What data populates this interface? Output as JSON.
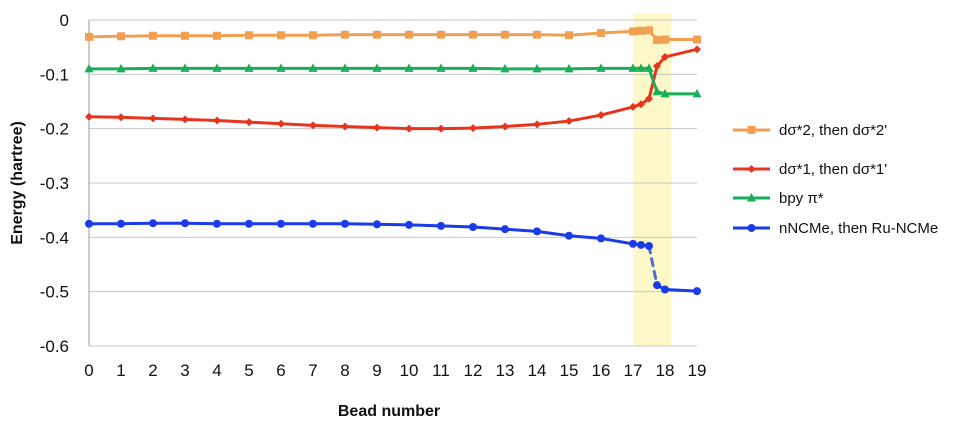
{
  "chart_data": {
    "type": "line",
    "title": "",
    "xlabel": "Bead number",
    "ylabel": "Energy (hartree)",
    "xlim": [
      0,
      19
    ],
    "ylim": [
      -0.6,
      0
    ],
    "x_ticks": [
      0,
      1,
      2,
      3,
      4,
      5,
      6,
      7,
      8,
      9,
      10,
      11,
      12,
      13,
      14,
      15,
      16,
      17,
      18,
      19
    ],
    "y_ticks": [
      0,
      -0.1,
      -0.2,
      -0.3,
      -0.4,
      -0.5,
      -0.6
    ],
    "y_tick_labels": [
      "0",
      "-0.1",
      "-0.2",
      "-0.3",
      "-0.4",
      "-0.5",
      "-0.6"
    ],
    "grid": "horizontal",
    "legend_position": "right",
    "highlight_region": {
      "x_from": 17.0,
      "x_to": 18.2,
      "color": "#fdf8c7"
    },
    "series": [
      {
        "name": "dσ*2, then dσ*2'",
        "color": "#f0a050",
        "marker": "square",
        "points": [
          [
            0,
            -0.031
          ],
          [
            1,
            -0.03
          ],
          [
            2,
            -0.029
          ],
          [
            3,
            -0.029
          ],
          [
            4,
            -0.029
          ],
          [
            5,
            -0.028
          ],
          [
            6,
            -0.028
          ],
          [
            7,
            -0.028
          ],
          [
            8,
            -0.027
          ],
          [
            9,
            -0.027
          ],
          [
            10,
            -0.027
          ],
          [
            11,
            -0.027
          ],
          [
            12,
            -0.027
          ],
          [
            13,
            -0.027
          ],
          [
            14,
            -0.027
          ],
          [
            15,
            -0.028
          ],
          [
            16,
            -0.024
          ],
          [
            17,
            -0.021
          ],
          [
            17.25,
            -0.02
          ],
          [
            17.5,
            -0.019
          ],
          [
            17.75,
            -0.037
          ],
          [
            18,
            -0.036
          ],
          [
            19,
            -0.036
          ]
        ]
      },
      {
        "name": "dσ*1, then dσ*1'",
        "color": "#e8341c",
        "marker": "diamond",
        "points": [
          [
            0,
            -0.178
          ],
          [
            1,
            -0.179
          ],
          [
            2,
            -0.181
          ],
          [
            3,
            -0.183
          ],
          [
            4,
            -0.185
          ],
          [
            5,
            -0.188
          ],
          [
            6,
            -0.191
          ],
          [
            7,
            -0.194
          ],
          [
            8,
            -0.196
          ],
          [
            9,
            -0.198
          ],
          [
            10,
            -0.2
          ],
          [
            11,
            -0.2
          ],
          [
            12,
            -0.199
          ],
          [
            13,
            -0.196
          ],
          [
            14,
            -0.192
          ],
          [
            15,
            -0.186
          ],
          [
            16,
            -0.175
          ],
          [
            17,
            -0.16
          ],
          [
            17.25,
            -0.155
          ],
          [
            17.5,
            -0.145
          ],
          [
            17.75,
            -0.085
          ],
          [
            18,
            -0.068
          ],
          [
            19,
            -0.054
          ]
        ]
      },
      {
        "name": "bpy π*",
        "color": "#1aae5a",
        "marker": "triangle",
        "points": [
          [
            0,
            -0.09
          ],
          [
            1,
            -0.09
          ],
          [
            2,
            -0.089
          ],
          [
            3,
            -0.089
          ],
          [
            4,
            -0.089
          ],
          [
            5,
            -0.089
          ],
          [
            6,
            -0.089
          ],
          [
            7,
            -0.089
          ],
          [
            8,
            -0.089
          ],
          [
            9,
            -0.089
          ],
          [
            10,
            -0.089
          ],
          [
            11,
            -0.089
          ],
          [
            12,
            -0.089
          ],
          [
            13,
            -0.09
          ],
          [
            14,
            -0.09
          ],
          [
            15,
            -0.09
          ],
          [
            16,
            -0.089
          ],
          [
            17,
            -0.089
          ],
          [
            17.25,
            -0.089
          ],
          [
            17.5,
            -0.089
          ],
          [
            17.75,
            -0.132
          ],
          [
            18,
            -0.136
          ],
          [
            19,
            -0.136
          ]
        ]
      },
      {
        "name": "nNCMe, then Ru-NCMe",
        "color": "#1a3ce8",
        "marker": "circle",
        "points": [
          [
            0,
            -0.375
          ],
          [
            1,
            -0.375
          ],
          [
            2,
            -0.374
          ],
          [
            3,
            -0.374
          ],
          [
            4,
            -0.375
          ],
          [
            5,
            -0.375
          ],
          [
            6,
            -0.375
          ],
          [
            7,
            -0.375
          ],
          [
            8,
            -0.375
          ],
          [
            9,
            -0.376
          ],
          [
            10,
            -0.377
          ],
          [
            11,
            -0.379
          ],
          [
            12,
            -0.381
          ],
          [
            13,
            -0.385
          ],
          [
            14,
            -0.389
          ],
          [
            15,
            -0.397
          ],
          [
            16,
            -0.402
          ],
          [
            17,
            -0.412
          ],
          [
            17.25,
            -0.414
          ],
          [
            17.5,
            -0.416
          ],
          [
            17.75,
            -0.488
          ],
          [
            18,
            -0.496
          ],
          [
            19,
            -0.499
          ]
        ],
        "dashed_segment": [
          17.5,
          17.75
        ]
      }
    ]
  }
}
